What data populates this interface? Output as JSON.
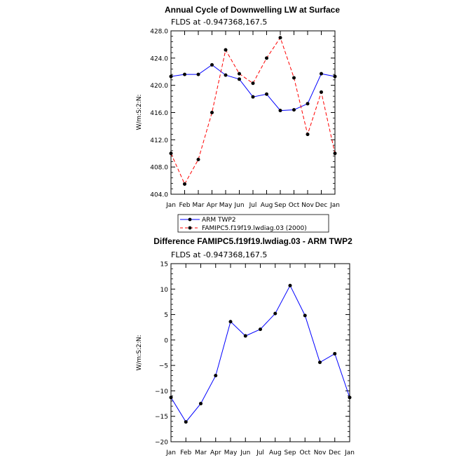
{
  "chart_data": [
    {
      "type": "line",
      "title": "Annual Cycle of Downwelling LW at Surface",
      "subtitle": "FLDS at -0.947368,167.5",
      "ylabel": "W/m:S:2:N:",
      "xlabel": "",
      "categories": [
        "Jan",
        "Feb",
        "Mar",
        "Apr",
        "May",
        "Jun",
        "Jul",
        "Aug",
        "Sep",
        "Oct",
        "Nov",
        "Dec",
        "Jan"
      ],
      "ylim": [
        404.0,
        428.0
      ],
      "yticks": [
        "404.0",
        "408.0",
        "412.0",
        "416.0",
        "420.0",
        "424.0",
        "428.0"
      ],
      "series": [
        {
          "name": "ARM TWP2",
          "color": "#0000ff",
          "dash": "solid",
          "values": [
            421.3,
            421.6,
            421.6,
            423.0,
            421.5,
            420.9,
            418.3,
            418.7,
            416.3,
            416.4,
            417.3,
            421.7,
            421.3
          ]
        },
        {
          "name": "FAMIPC5.f19f19.lwdiag.03 (2000)",
          "color": "#ff0000",
          "dash": "dashed",
          "values": [
            410.0,
            405.5,
            409.1,
            416.0,
            425.2,
            421.7,
            420.3,
            424.0,
            427.0,
            421.1,
            412.8,
            419.0,
            410.0
          ]
        }
      ],
      "legend": [
        "ARM TWP2",
        "FAMIPC5.f19f19.lwdiag.03 (2000)"
      ],
      "legend_position": "below"
    },
    {
      "type": "line",
      "title": "Difference FAMIPC5.f19f19.lwdiag.03 - ARM TWP2",
      "subtitle": "FLDS at -0.947368,167.5",
      "ylabel": "W/m:S:2:N:",
      "xlabel": "",
      "categories": [
        "Jan",
        "Feb",
        "Mar",
        "Apr",
        "May",
        "Jun",
        "Jul",
        "Aug",
        "Sep",
        "Oct",
        "Nov",
        "Dec",
        "Jan"
      ],
      "ylim": [
        -20,
        15
      ],
      "yticks": [
        "−20",
        "−15",
        "−10",
        "−5",
        "0",
        "5",
        "10",
        "15"
      ],
      "series": [
        {
          "name": "Difference",
          "color": "#0000ff",
          "dash": "solid",
          "values": [
            -11.3,
            -16.1,
            -12.5,
            -7.0,
            3.6,
            0.8,
            2.1,
            5.2,
            10.7,
            4.8,
            -4.4,
            -2.7,
            -11.3
          ]
        }
      ]
    }
  ]
}
